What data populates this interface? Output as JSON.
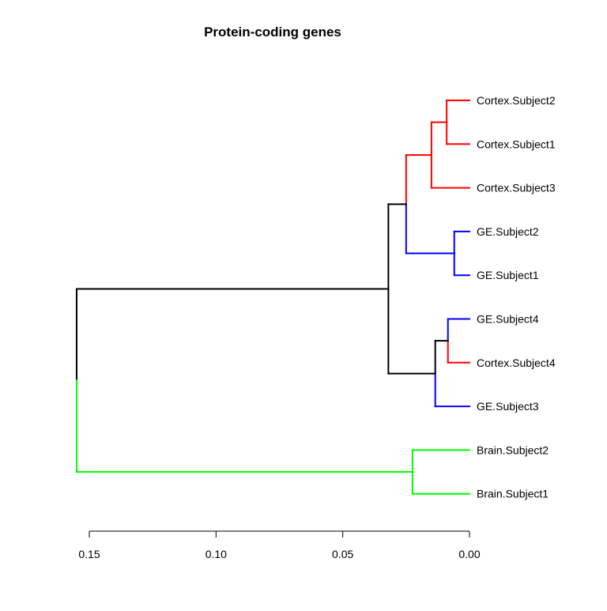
{
  "chart_data": {
    "type": "dendrogram",
    "title": "Protein-coding genes",
    "orientation": "horizontal",
    "xlim": [
      0.15,
      0.0
    ],
    "x_ticks": [
      0.15,
      0.1,
      0.05,
      0.0
    ],
    "x_tick_labels": [
      "0.15",
      "0.10",
      "0.05",
      "0.00"
    ],
    "leaves": [
      {
        "label": "Cortex.Subject2",
        "color": "#ff0000"
      },
      {
        "label": "Cortex.Subject1",
        "color": "#ff0000"
      },
      {
        "label": "Cortex.Subject3",
        "color": "#ff0000"
      },
      {
        "label": "GE.Subject2",
        "color": "#0000ff"
      },
      {
        "label": "GE.Subject1",
        "color": "#0000ff"
      },
      {
        "label": "GE.Subject4",
        "color": "#0000ff"
      },
      {
        "label": "Cortex.Subject4",
        "color": "#ff0000"
      },
      {
        "label": "GE.Subject3",
        "color": "#0000ff"
      },
      {
        "label": "Brain.Subject2",
        "color": "#00ff00"
      },
      {
        "label": "Brain.Subject1",
        "color": "#00ff00"
      }
    ],
    "merges": [
      {
        "id": "m1",
        "height": 0.009,
        "children": [
          "leaf:0",
          "leaf:1"
        ],
        "color": "#ff0000"
      },
      {
        "id": "m2",
        "height": 0.015,
        "children": [
          "m1",
          "leaf:2"
        ],
        "color": "#ff0000"
      },
      {
        "id": "m3",
        "height": 0.006,
        "children": [
          "leaf:3",
          "leaf:4"
        ],
        "color": "#0000ff"
      },
      {
        "id": "m4",
        "height": 0.025,
        "children": [
          "m2",
          "m3"
        ],
        "color": "#ff0000",
        "child_colors": [
          "#ff0000",
          "#0000ff"
        ]
      },
      {
        "id": "m5",
        "height": 0.0085,
        "children": [
          "leaf:5",
          "leaf:6"
        ],
        "color": "#0000ff",
        "child_colors": [
          "#0000ff",
          "#ff0000"
        ]
      },
      {
        "id": "m6",
        "height": 0.0135,
        "children": [
          "m5",
          "leaf:7"
        ],
        "color": "#000000",
        "child_colors": [
          "#000000",
          "#0000ff"
        ]
      },
      {
        "id": "m7",
        "height": 0.032,
        "children": [
          "m4",
          "m6"
        ],
        "color": "#000000"
      },
      {
        "id": "m8",
        "height": 0.0225,
        "children": [
          "leaf:8",
          "leaf:9"
        ],
        "color": "#00ff00"
      },
      {
        "id": "m9",
        "height": 0.155,
        "children": [
          "m7",
          "m8"
        ],
        "color": "#000000",
        "child_colors": [
          "#000000",
          "#00ff00"
        ]
      }
    ],
    "colors": {
      "cortex": "#ff0000",
      "ge": "#0000ff",
      "brain": "#00ff00",
      "mixed": "#000000"
    }
  }
}
